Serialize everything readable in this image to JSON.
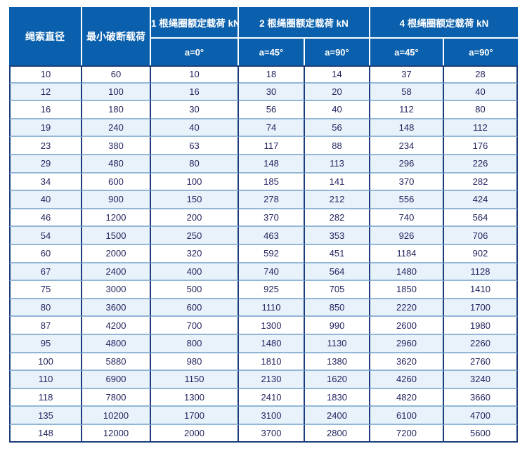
{
  "colors": {
    "header_blue": "#0a60ad",
    "header_text": "#ffffff",
    "outer_and_column_border": "#1b3d7c",
    "row_separator": "#93b6d7",
    "stripe_row_bg": "#e8f2fb",
    "data_text": "#23255f",
    "page_bg": "#ffffff"
  },
  "table": {
    "header": {
      "rope_diameter": "绳索直径",
      "min_breaking_load": "最小破断载荷",
      "group_1": "1 根绳圈额定载荷 kN",
      "group_2": "2 根绳圈额定载荷 kN",
      "group_4": "4 根绳圈额定载荷 kN",
      "sub_a0": "a=0°",
      "sub_a45": "a=45°",
      "sub_a90": "a=90°"
    },
    "rows": [
      [
        10,
        60,
        10,
        18,
        14,
        37,
        28
      ],
      [
        12,
        100,
        16,
        30,
        20,
        58,
        40
      ],
      [
        16,
        180,
        30,
        56,
        40,
        112,
        80
      ],
      [
        19,
        240,
        40,
        74,
        56,
        148,
        112
      ],
      [
        23,
        380,
        63,
        117,
        88,
        234,
        176
      ],
      [
        29,
        480,
        80,
        148,
        113,
        296,
        226
      ],
      [
        34,
        600,
        100,
        185,
        141,
        370,
        282
      ],
      [
        40,
        900,
        150,
        278,
        212,
        556,
        424
      ],
      [
        46,
        1200,
        200,
        370,
        282,
        740,
        564
      ],
      [
        54,
        1500,
        250,
        463,
        353,
        926,
        706
      ],
      [
        60,
        2000,
        320,
        592,
        451,
        1184,
        902
      ],
      [
        67,
        2400,
        400,
        740,
        564,
        1480,
        1128
      ],
      [
        75,
        3000,
        500,
        925,
        705,
        1850,
        1410
      ],
      [
        80,
        3600,
        600,
        1110,
        850,
        2220,
        1700
      ],
      [
        87,
        4200,
        700,
        1300,
        990,
        2600,
        1980
      ],
      [
        95,
        4800,
        800,
        1480,
        1130,
        2960,
        2260
      ],
      [
        100,
        5880,
        980,
        1810,
        1380,
        3620,
        2760
      ],
      [
        110,
        6900,
        1150,
        2130,
        1620,
        4260,
        3240
      ],
      [
        118,
        7800,
        1300,
        2410,
        1830,
        4820,
        3660
      ],
      [
        135,
        10200,
        1700,
        3100,
        2400,
        6100,
        4700
      ],
      [
        148,
        12000,
        2000,
        3700,
        2800,
        7200,
        5600
      ]
    ]
  }
}
